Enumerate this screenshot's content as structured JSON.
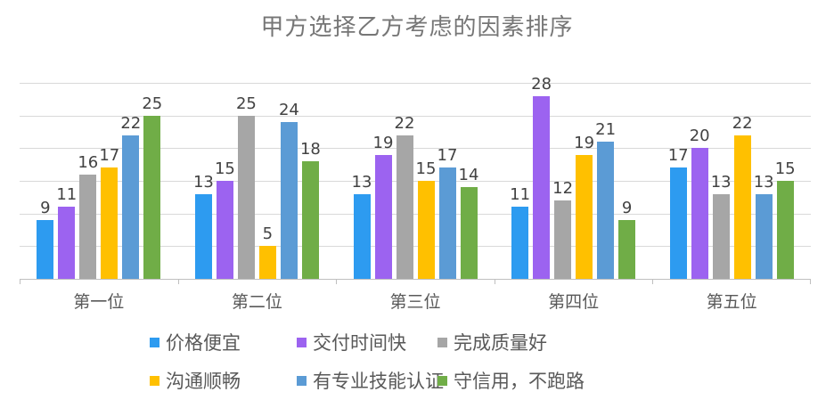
{
  "chart_data": {
    "type": "bar",
    "title": "甲方选择乙方考虑的因素排序",
    "categories": [
      "第一位",
      "第二位",
      "第三位",
      "第四位",
      "第五位"
    ],
    "series": [
      {
        "name": "价格便宜",
        "color": "#2d9bf0",
        "values": [
          9,
          13,
          13,
          11,
          17
        ]
      },
      {
        "name": "交付时间快",
        "color": "#9c63f0",
        "values": [
          11,
          15,
          19,
          28,
          20
        ]
      },
      {
        "name": "完成质量好",
        "color": "#a6a6a6",
        "values": [
          16,
          25,
          22,
          12,
          13
        ]
      },
      {
        "name": "沟通顺畅",
        "color": "#ffc000",
        "values": [
          17,
          5,
          15,
          19,
          22
        ]
      },
      {
        "name": "有专业技能认证",
        "color": "#5b9bd5",
        "values": [
          22,
          24,
          17,
          21,
          13
        ]
      },
      {
        "name": "守信用，不跑路",
        "color": "#70ad47",
        "values": [
          25,
          18,
          14,
          9,
          15
        ]
      }
    ],
    "ylim": [
      0,
      30
    ],
    "grid_step": 5,
    "grid": "on",
    "y_axis_labels": "none",
    "legend_position": "bottom",
    "data_labels": "above-bars",
    "colors": {
      "gridline": "#d9d9d9",
      "axis": "#bfbfbf",
      "title_text": "#767676",
      "label_text": "#424242",
      "category_text": "#595959",
      "legend_text": "#595959",
      "background": "#ffffff"
    }
  }
}
